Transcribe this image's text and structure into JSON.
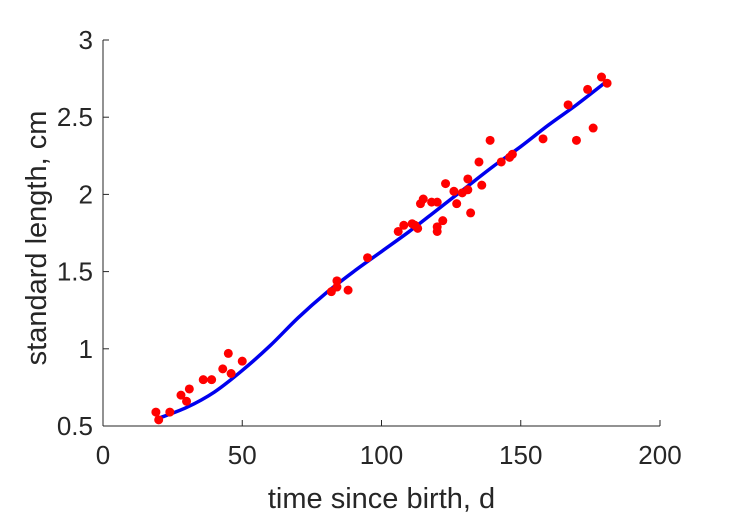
{
  "chart_data": {
    "type": "scatter",
    "title": "",
    "xlabel": "time since birth, d",
    "ylabel": "standard length, cm",
    "xlim": [
      0,
      200
    ],
    "ylim": [
      0.5,
      3
    ],
    "xticks": [
      0,
      50,
      100,
      150,
      200
    ],
    "yticks": [
      0.5,
      1,
      1.5,
      2,
      2.5,
      3
    ],
    "xtick_labels": [
      "0",
      "50",
      "100",
      "150",
      "200"
    ],
    "ytick_labels": [
      "0.5",
      "1",
      "1.5",
      "2",
      "2.5",
      "3"
    ],
    "grid": false,
    "legend": "none",
    "colors": {
      "points": "#ff0000",
      "fit": "#0000ee",
      "axes": "#262626"
    },
    "series": [
      {
        "kind": "scatter",
        "points": [
          [
            19,
            0.59
          ],
          [
            20,
            0.54
          ],
          [
            24,
            0.59
          ],
          [
            28,
            0.7
          ],
          [
            30,
            0.66
          ],
          [
            31,
            0.74
          ],
          [
            36,
            0.8
          ],
          [
            39,
            0.8
          ],
          [
            43,
            0.87
          ],
          [
            45,
            0.97
          ],
          [
            46,
            0.84
          ],
          [
            50,
            0.92
          ],
          [
            82,
            1.37
          ],
          [
            84,
            1.4
          ],
          [
            84,
            1.44
          ],
          [
            88,
            1.38
          ],
          [
            95,
            1.59
          ],
          [
            106,
            1.76
          ],
          [
            108,
            1.8
          ],
          [
            111,
            1.81
          ],
          [
            112,
            1.8
          ],
          [
            113,
            1.78
          ],
          [
            114,
            1.94
          ],
          [
            115,
            1.97
          ],
          [
            118,
            1.95
          ],
          [
            120,
            1.95
          ],
          [
            120,
            1.79
          ],
          [
            120,
            1.76
          ],
          [
            122,
            1.83
          ],
          [
            123,
            2.07
          ],
          [
            126,
            2.02
          ],
          [
            127,
            1.94
          ],
          [
            129,
            2.01
          ],
          [
            131,
            2.03
          ],
          [
            131,
            2.1
          ],
          [
            132,
            1.88
          ],
          [
            135,
            2.21
          ],
          [
            136,
            2.06
          ],
          [
            139,
            2.35
          ],
          [
            143,
            2.21
          ],
          [
            146,
            2.24
          ],
          [
            147,
            2.26
          ],
          [
            158,
            2.36
          ],
          [
            167,
            2.58
          ],
          [
            170,
            2.35
          ],
          [
            174,
            2.68
          ],
          [
            176,
            2.43
          ],
          [
            179,
            2.76
          ],
          [
            181,
            2.72
          ]
        ]
      },
      {
        "kind": "line",
        "points": [
          [
            20,
            0.55
          ],
          [
            30,
            0.62
          ],
          [
            40,
            0.72
          ],
          [
            50,
            0.86
          ],
          [
            60,
            1.02
          ],
          [
            70,
            1.2
          ],
          [
            80,
            1.36
          ],
          [
            90,
            1.5
          ],
          [
            100,
            1.63
          ],
          [
            110,
            1.76
          ],
          [
            120,
            1.9
          ],
          [
            130,
            2.04
          ],
          [
            140,
            2.18
          ],
          [
            150,
            2.31
          ],
          [
            160,
            2.45
          ],
          [
            170,
            2.58
          ],
          [
            180,
            2.72
          ]
        ]
      }
    ]
  }
}
